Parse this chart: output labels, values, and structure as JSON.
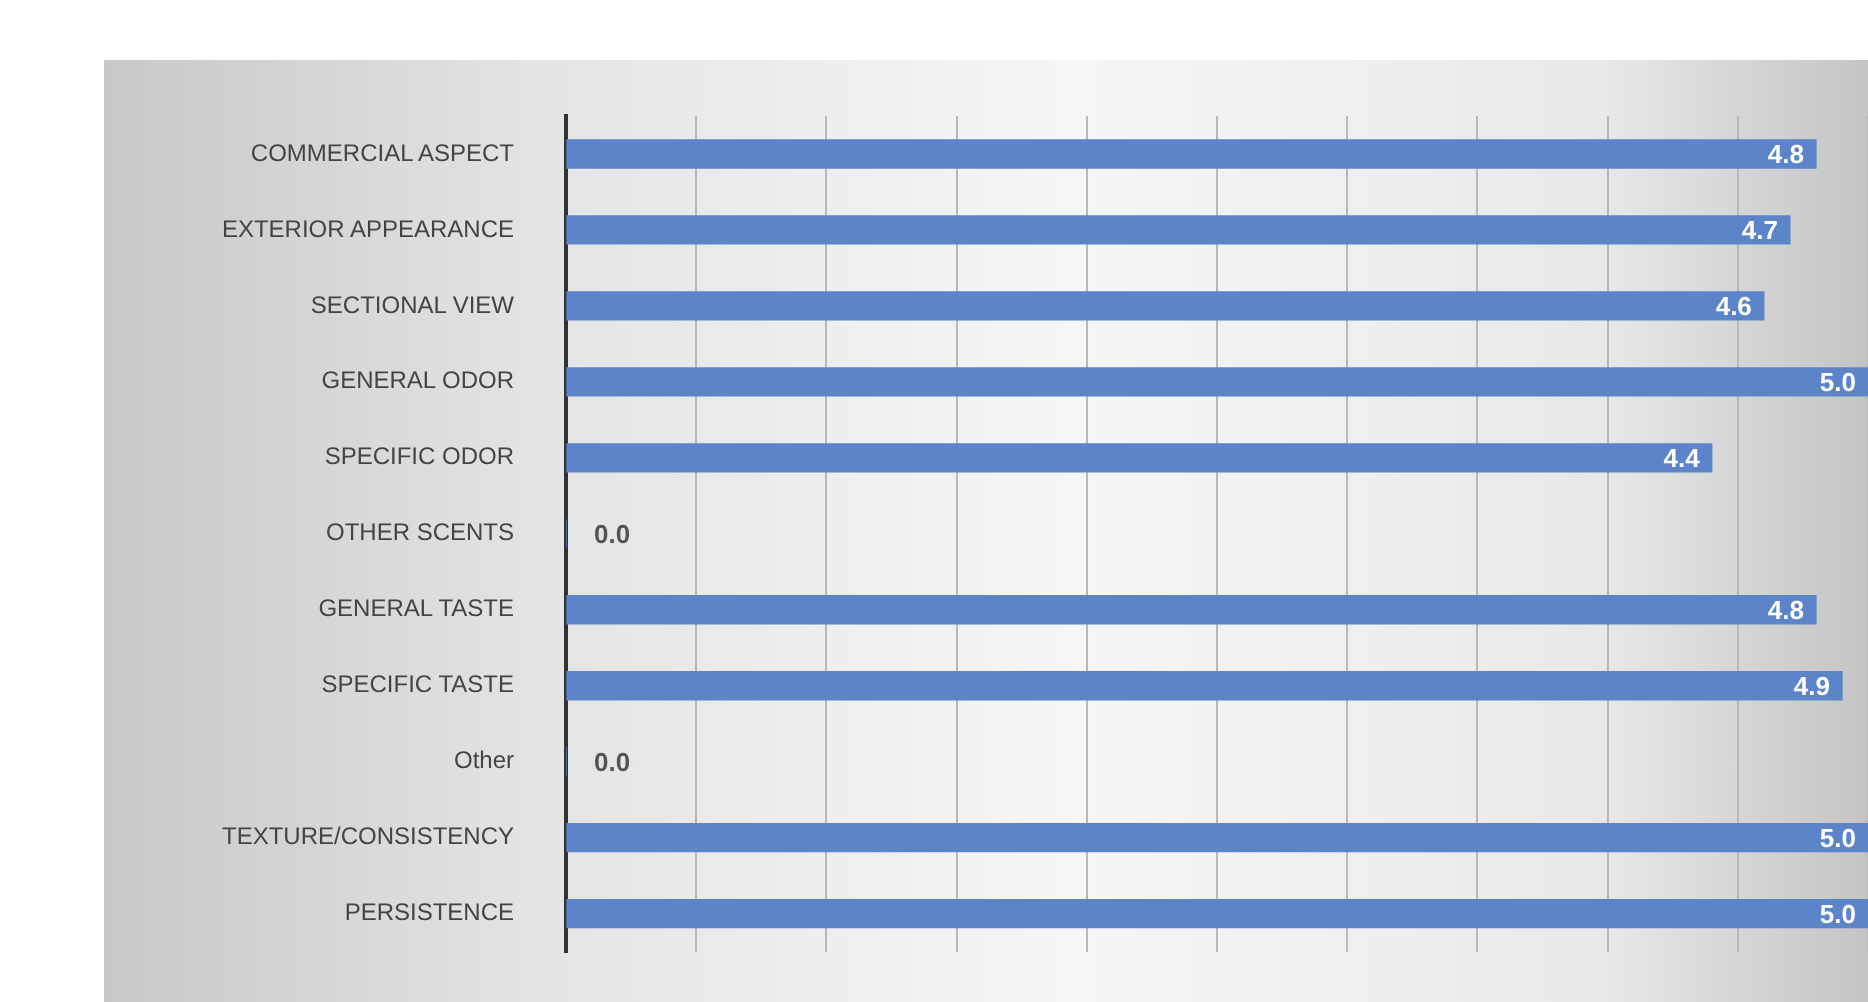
{
  "chart_data": {
    "type": "bar",
    "orientation": "horizontal",
    "categories": [
      "COMMERCIAL ASPECT",
      "EXTERIOR APPEARANCE",
      "SECTIONAL VIEW",
      "GENERAL ODOR",
      "SPECIFIC ODOR",
      "OTHER SCENTS",
      "GENERAL TASTE",
      "SPECIFIC TASTE",
      "Other",
      "TEXTURE/CONSISTENCY",
      "PERSISTENCE"
    ],
    "values": [
      4.8,
      4.7,
      4.6,
      5.0,
      4.4,
      0.0,
      4.8,
      4.9,
      0.0,
      5.0,
      5.0
    ],
    "value_labels": [
      "4.8",
      "4.7",
      "4.6",
      "5.0",
      "4.4",
      "0.0",
      "4.8",
      "4.9",
      "0.0",
      "5.0",
      "5.0"
    ],
    "color": "#5b84c9",
    "xlim": [
      0,
      5
    ],
    "xticks": [
      {
        "value": 0,
        "label": null
      },
      {
        "value": 0.5,
        "label": null
      },
      {
        "value": 1,
        "label": null
      },
      {
        "value": 1.5,
        "label": null
      },
      {
        "value": 2,
        "label": null
      },
      {
        "value": 2.5,
        "label": null
      },
      {
        "value": 3,
        "label": null
      },
      {
        "value": 3.5,
        "label": null
      },
      {
        "value": 4,
        "label": null
      },
      {
        "value": 4.5,
        "label": null
      },
      {
        "value": 5,
        "label": null
      }
    ],
    "grid": "x",
    "legend": false,
    "tick_labels": "y"
  }
}
